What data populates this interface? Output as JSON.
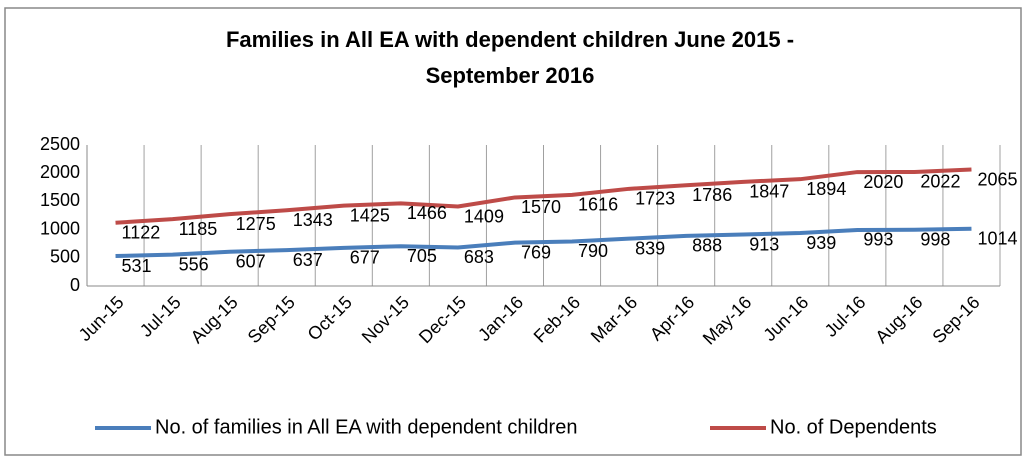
{
  "chart_data": {
    "type": "line",
    "title": "Families in All EA with dependent children June 2015 - September 2016",
    "categories": [
      "Jun-15",
      "Jul-15",
      "Aug-15",
      "Sep-15",
      "Oct-15",
      "Nov-15",
      "Dec-15",
      "Jan-16",
      "Feb-16",
      "Mar-16",
      "Apr-16",
      "May-16",
      "Jun-16",
      "Jul-16",
      "Aug-16",
      "Sep-16"
    ],
    "series": [
      {
        "name": "No. of families in All EA with dependent children",
        "color": "#4a7ebb",
        "values": [
          531,
          556,
          607,
          637,
          677,
          705,
          683,
          769,
          790,
          839,
          888,
          913,
          939,
          993,
          998,
          1014
        ]
      },
      {
        "name": "No. of Dependents",
        "color": "#be4b48",
        "values": [
          1122,
          1185,
          1275,
          1343,
          1425,
          1466,
          1409,
          1570,
          1616,
          1723,
          1786,
          1847,
          1894,
          2020,
          2022,
          2065
        ]
      }
    ],
    "ylim": [
      0,
      2500
    ],
    "yticks": [
      0,
      500,
      1000,
      1500,
      2000,
      2500
    ],
    "grid": true,
    "legend": "bottom"
  }
}
